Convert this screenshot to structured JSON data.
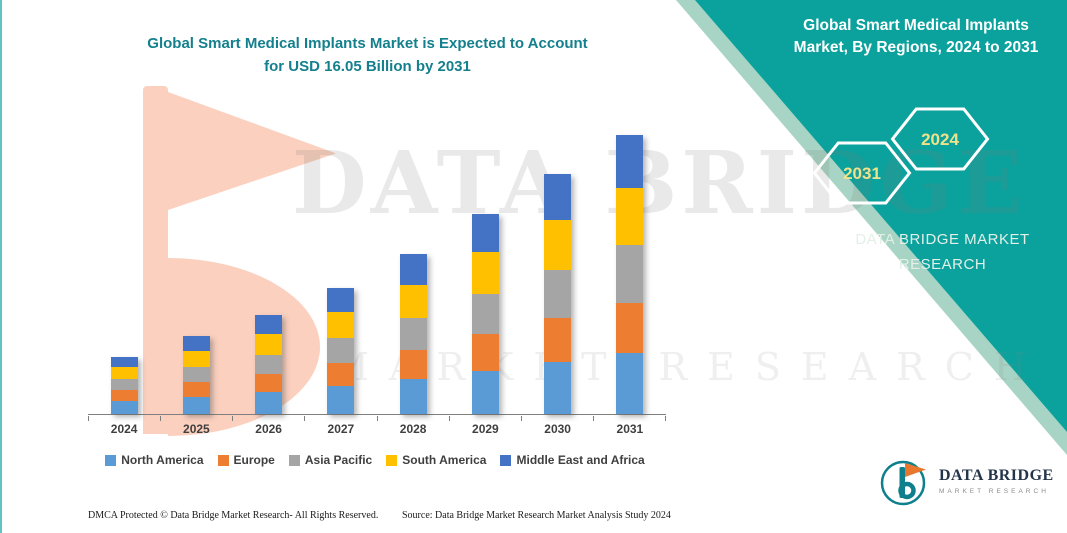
{
  "theme": {
    "teal": "#0BA29E",
    "teal_light_edge": "#A7D4C4",
    "title_color": "#14808D",
    "watermark_orange": "#F8B193"
  },
  "chart_title": {
    "line1": "Global Smart Medical Implants Market is Expected to Account",
    "line2": "for USD 16.05 Billion by 2031"
  },
  "right_panel": {
    "title": "Global Smart Medical Implants Market, By Regions, 2024 to 2031",
    "hexagon_back_label": "2031",
    "hexagon_front_label": "2024",
    "brand_line1": "DATA BRIDGE MARKET",
    "brand_line2": "RESEARCH"
  },
  "watermark": {
    "line1": "DATA BRIDGE",
    "line2": "MARKET RESEARCH"
  },
  "footer": {
    "left": "DMCA Protected © Data Bridge Market Research-  All Rights Reserved.",
    "source": "Source: Data Bridge Market Research  Market Analysis Study 2024"
  },
  "logo": {
    "name": "DATA BRIDGE",
    "sub": "MARKET RESEARCH"
  },
  "chart_data": {
    "type": "bar",
    "stacked": true,
    "title": "Global Smart Medical Implants Market is Expected to Account for USD 16.05 Billion by 2031",
    "units": "USD Billion",
    "categories": [
      "2024",
      "2025",
      "2026",
      "2027",
      "2028",
      "2029",
      "2030",
      "2031"
    ],
    "series": [
      {
        "name": "North America",
        "color": "#5B9BD5",
        "values": [
          0.75,
          1.0,
          1.25,
          1.6,
          2.0,
          2.5,
          3.0,
          3.5
        ]
      },
      {
        "name": "Europe",
        "color": "#ED7D31",
        "values": [
          0.65,
          0.85,
          1.05,
          1.35,
          1.7,
          2.1,
          2.5,
          2.9
        ]
      },
      {
        "name": "Asia Pacific",
        "color": "#A5A5A5",
        "values": [
          0.6,
          0.85,
          1.1,
          1.4,
          1.8,
          2.3,
          2.8,
          3.3
        ]
      },
      {
        "name": "South America",
        "color": "#FFC000",
        "values": [
          0.7,
          0.95,
          1.2,
          1.5,
          1.9,
          2.4,
          2.85,
          3.3
        ]
      },
      {
        "name": "Middle East and Africa",
        "color": "#4472C4",
        "values": [
          0.6,
          0.85,
          1.1,
          1.4,
          1.8,
          2.2,
          2.65,
          3.05
        ]
      }
    ],
    "totals": [
      3.3,
      4.5,
      5.7,
      7.25,
      9.2,
      11.5,
      13.8,
      16.05
    ],
    "ylim": [
      0,
      17
    ],
    "grid": false,
    "legend_position": "bottom"
  }
}
